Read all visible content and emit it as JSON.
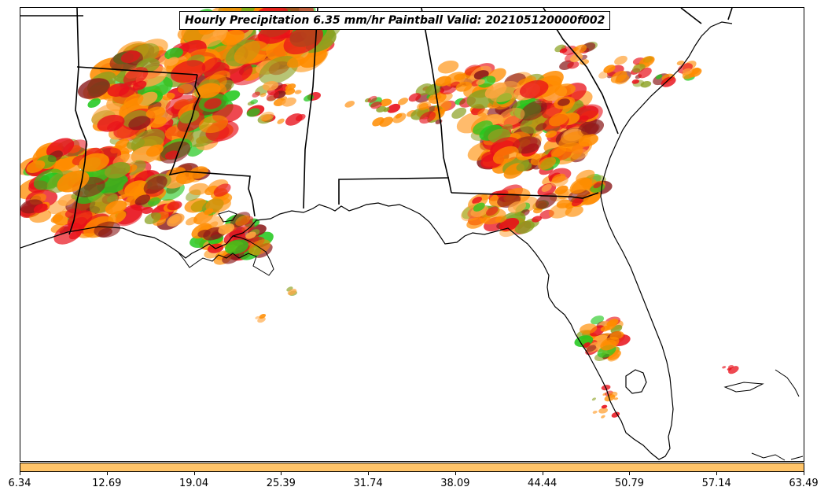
{
  "title": "Hourly Precipitation 6.35 mm/hr Paintball Valid: 202105120000f002",
  "colors": {
    "colorbar": "#FFC469",
    "paint_orange": "#FF8C00",
    "paint_red": "#E8101A",
    "paint_green": "#22C81E",
    "paint_olive": "#8AA020",
    "paint_darkred": "#8B1A1A",
    "paint_lightorange": "#FFA640",
    "outline": "#000000"
  },
  "colorbar": {
    "ticks": [
      "6.34",
      "12.69",
      "19.04",
      "25.39",
      "31.74",
      "38.09",
      "44.44",
      "50.79",
      "57.14",
      "63.49"
    ]
  }
}
